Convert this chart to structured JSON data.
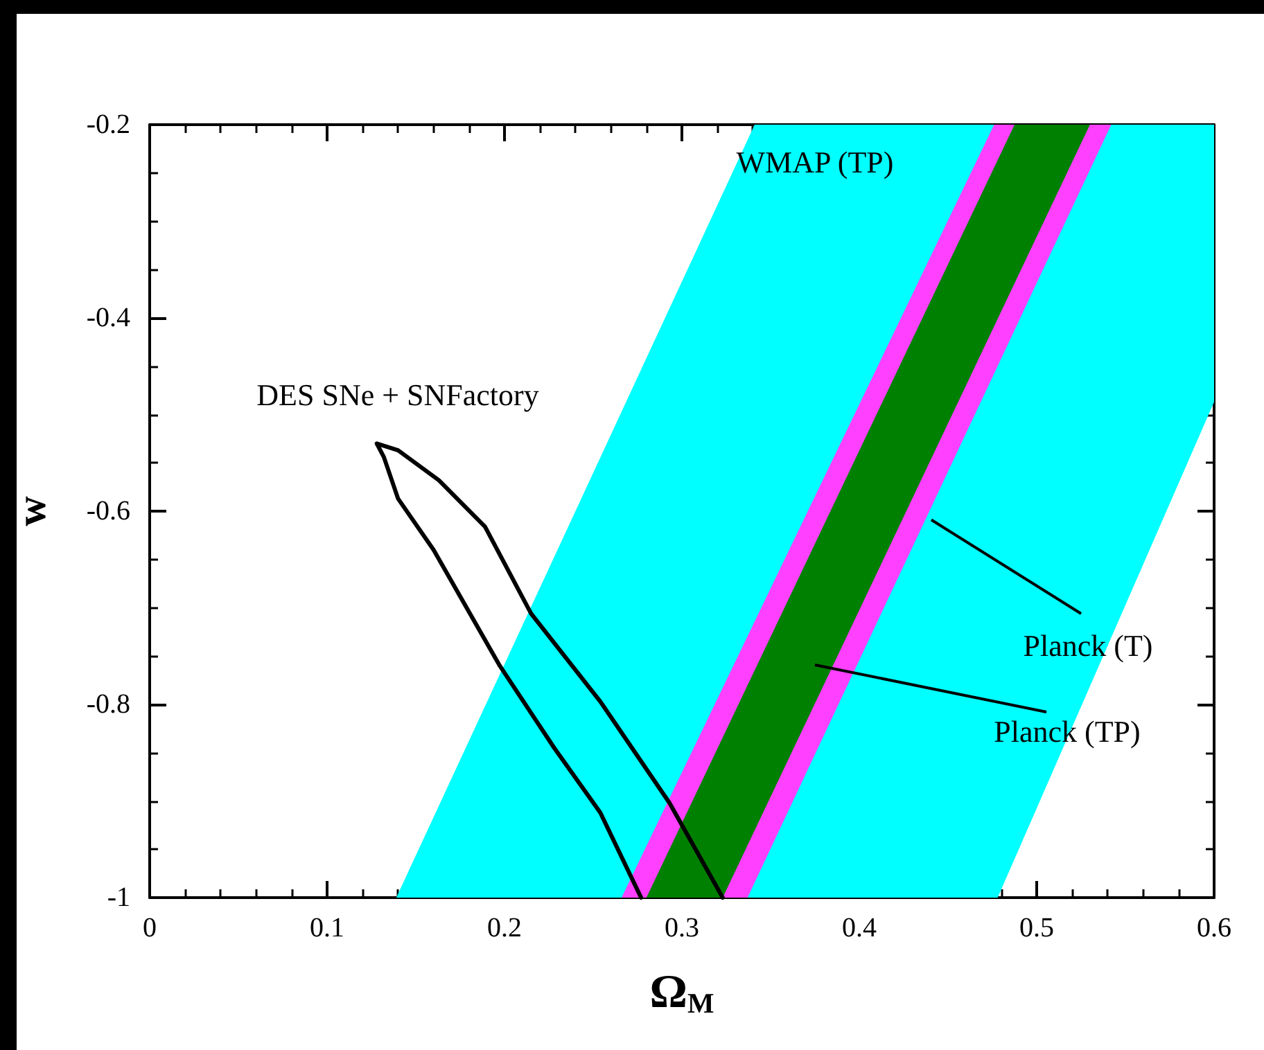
{
  "chart_data": {
    "type": "line",
    "xlabel": "Ω$_{M}$",
    "ylabel": "w",
    "xlim": [
      0,
      0.6
    ],
    "xticks": [
      0,
      0.1,
      0.2,
      0.3,
      0.4,
      0.5,
      0.6
    ],
    "ylim": [
      -1,
      -0.2
    ],
    "yticks": [
      -1,
      -0.8,
      -0.6,
      -0.4,
      -0.2
    ],
    "grid": false,
    "marker": "none",
    "line_style": "solid",
    "series": [
      {
        "type": "area",
        "color": "#00ffff",
        "x": [
          0.139,
          0.341,
          0.6,
          0.6,
          0.478
        ],
        "values": [
          -1,
          -0.2,
          -0.2,
          -0.487,
          -1
        ]
      },
      {
        "type": "area",
        "color": "#ff40ff",
        "x": [
          0.266,
          0.476,
          0.542,
          0.337
        ],
        "values": [
          -1,
          -0.2,
          -0.2,
          -1
        ]
      },
      {
        "type": "area",
        "color": "#008000",
        "x": [
          0.28,
          0.4875,
          0.53,
          0.323
        ],
        "values": [
          -1,
          -0.2,
          -0.2,
          -1
        ]
      },
      {
        "type": "line",
        "color": "#000000",
        "x": [
          0.277,
          0.254,
          0.228,
          0.197,
          0.16,
          0.14,
          0.132,
          0.128,
          0.14,
          0.163,
          0.189,
          0.215,
          0.254,
          0.293,
          0.323
        ],
        "values": [
          -1,
          -0.912,
          -0.845,
          -0.759,
          -0.64,
          -0.587,
          -0.544,
          -0.53,
          -0.537,
          -0.568,
          -0.616,
          -0.706,
          -0.797,
          -0.902,
          -1
        ]
      }
    ],
    "annotations": [
      "WMAP (TP)",
      "DES SNe + SNFactory",
      {
        "text": "Planck (T)",
        "x": 0.4406,
        "y": -0.609
      },
      "Planck (TP)"
    ]
  }
}
